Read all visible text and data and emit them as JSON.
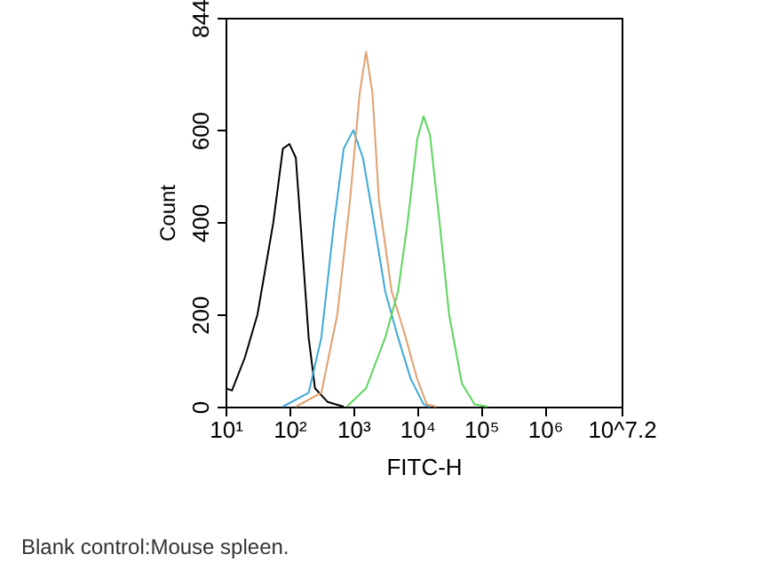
{
  "chart_data": {
    "type": "line",
    "xlabel": "FITC-H",
    "ylabel": "Count",
    "log": "x",
    "xlim": [
      10,
      15848932
    ],
    "xticks": [
      {
        "value": 10,
        "label": "10¹"
      },
      {
        "value": 100,
        "label": "10²"
      },
      {
        "value": 1000,
        "label": "10³"
      },
      {
        "value": 10000,
        "label": "10⁴"
      },
      {
        "value": 100000,
        "label": "10⁵"
      },
      {
        "value": 1000000,
        "label": "10⁶"
      },
      {
        "value": 15848932,
        "label": "10^7.2"
      }
    ],
    "ylim": [
      0,
      844
    ],
    "yticks": [
      0,
      200,
      400,
      600,
      844
    ],
    "grid": false,
    "annotations": [
      "Blank control:Mouse spleen."
    ],
    "series": [
      {
        "color": "#000000",
        "x": [
          10,
          12.6,
          20,
          31.6,
          56,
          79,
          100,
          126,
          158,
          200,
          251,
          398,
          708
        ],
        "values": [
          40,
          35,
          106,
          200,
          400,
          560,
          570,
          540,
          350,
          150,
          40,
          10,
          0
        ]
      },
      {
        "color": "#3fa9d8",
        "x": [
          79,
          200,
          316,
          501,
          708,
          1000,
          1413,
          1995,
          3162,
          5012,
          7943,
          12589,
          15849
        ],
        "values": [
          0,
          30,
          150,
          400,
          560,
          600,
          540,
          420,
          250,
          150,
          60,
          5,
          0
        ]
      },
      {
        "color": "#e0a070",
        "x": [
          126,
          316,
          562,
          891,
          1259,
          1585,
          1995,
          2512,
          3981,
          6310,
          10000,
          14125,
          19953
        ],
        "values": [
          0,
          30,
          200,
          450,
          680,
          770,
          680,
          450,
          250,
          160,
          60,
          5,
          0
        ]
      },
      {
        "color": "#5cd65c",
        "x": [
          794,
          1585,
          3162,
          5012,
          7079,
          10000,
          12589,
          15849,
          22387,
          31623,
          50119,
          79433,
          125893
        ],
        "values": [
          0,
          40,
          150,
          250,
          400,
          580,
          630,
          590,
          400,
          200,
          50,
          5,
          0
        ]
      }
    ]
  }
}
